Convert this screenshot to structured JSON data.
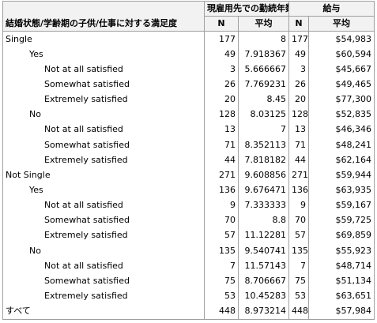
{
  "header": {
    "row_header": "結婚状態/学齢期の子供/仕事に対する満足度",
    "group1": "現雇用先での勤続年数",
    "group2": "給与",
    "n_label": "N",
    "mean_label": "平均"
  },
  "rows": [
    {
      "label": "Single",
      "level": 0,
      "n1": "177",
      "m1": "8",
      "n2": "177",
      "m2": "$54,983"
    },
    {
      "label": "Yes",
      "level": 1,
      "n1": "49",
      "m1": "7.918367",
      "n2": "49",
      "m2": "$60,594"
    },
    {
      "label": "Not at all satisfied",
      "level": 2,
      "n1": "3",
      "m1": "5.666667",
      "n2": "3",
      "m2": "$45,667"
    },
    {
      "label": "Somewhat satisfied",
      "level": 2,
      "n1": "26",
      "m1": "7.769231",
      "n2": "26",
      "m2": "$49,465"
    },
    {
      "label": "Extremely satisfied",
      "level": 2,
      "n1": "20",
      "m1": "8.45",
      "n2": "20",
      "m2": "$77,300"
    },
    {
      "label": "No",
      "level": 1,
      "n1": "128",
      "m1": "8.03125",
      "n2": "128",
      "m2": "$52,835"
    },
    {
      "label": "Not at all satisfied",
      "level": 2,
      "n1": "13",
      "m1": "7",
      "n2": "13",
      "m2": "$46,346"
    },
    {
      "label": "Somewhat satisfied",
      "level": 2,
      "n1": "71",
      "m1": "8.352113",
      "n2": "71",
      "m2": "$48,241"
    },
    {
      "label": "Extremely satisfied",
      "level": 2,
      "n1": "44",
      "m1": "7.818182",
      "n2": "44",
      "m2": "$62,164"
    },
    {
      "label": "Not Single",
      "level": 0,
      "n1": "271",
      "m1": "9.608856",
      "n2": "271",
      "m2": "$59,944"
    },
    {
      "label": "Yes",
      "level": 1,
      "n1": "136",
      "m1": "9.676471",
      "n2": "136",
      "m2": "$63,935"
    },
    {
      "label": "Not at all satisfied",
      "level": 2,
      "n1": "9",
      "m1": "7.333333",
      "n2": "9",
      "m2": "$59,167"
    },
    {
      "label": "Somewhat satisfied",
      "level": 2,
      "n1": "70",
      "m1": "8.8",
      "n2": "70",
      "m2": "$59,725"
    },
    {
      "label": "Extremely satisfied",
      "level": 2,
      "n1": "57",
      "m1": "11.12281",
      "n2": "57",
      "m2": "$69,859"
    },
    {
      "label": "No",
      "level": 1,
      "n1": "135",
      "m1": "9.540741",
      "n2": "135",
      "m2": "$55,923"
    },
    {
      "label": "Not at all satisfied",
      "level": 2,
      "n1": "7",
      "m1": "11.57143",
      "n2": "7",
      "m2": "$48,714"
    },
    {
      "label": "Somewhat satisfied",
      "level": 2,
      "n1": "75",
      "m1": "8.706667",
      "n2": "75",
      "m2": "$51,134"
    },
    {
      "label": "Extremely satisfied",
      "level": 2,
      "n1": "53",
      "m1": "10.45283",
      "n2": "53",
      "m2": "$63,651"
    },
    {
      "label": "すべて",
      "level": 0,
      "n1": "448",
      "m1": "8.973214",
      "n2": "448",
      "m2": "$57,984"
    }
  ]
}
